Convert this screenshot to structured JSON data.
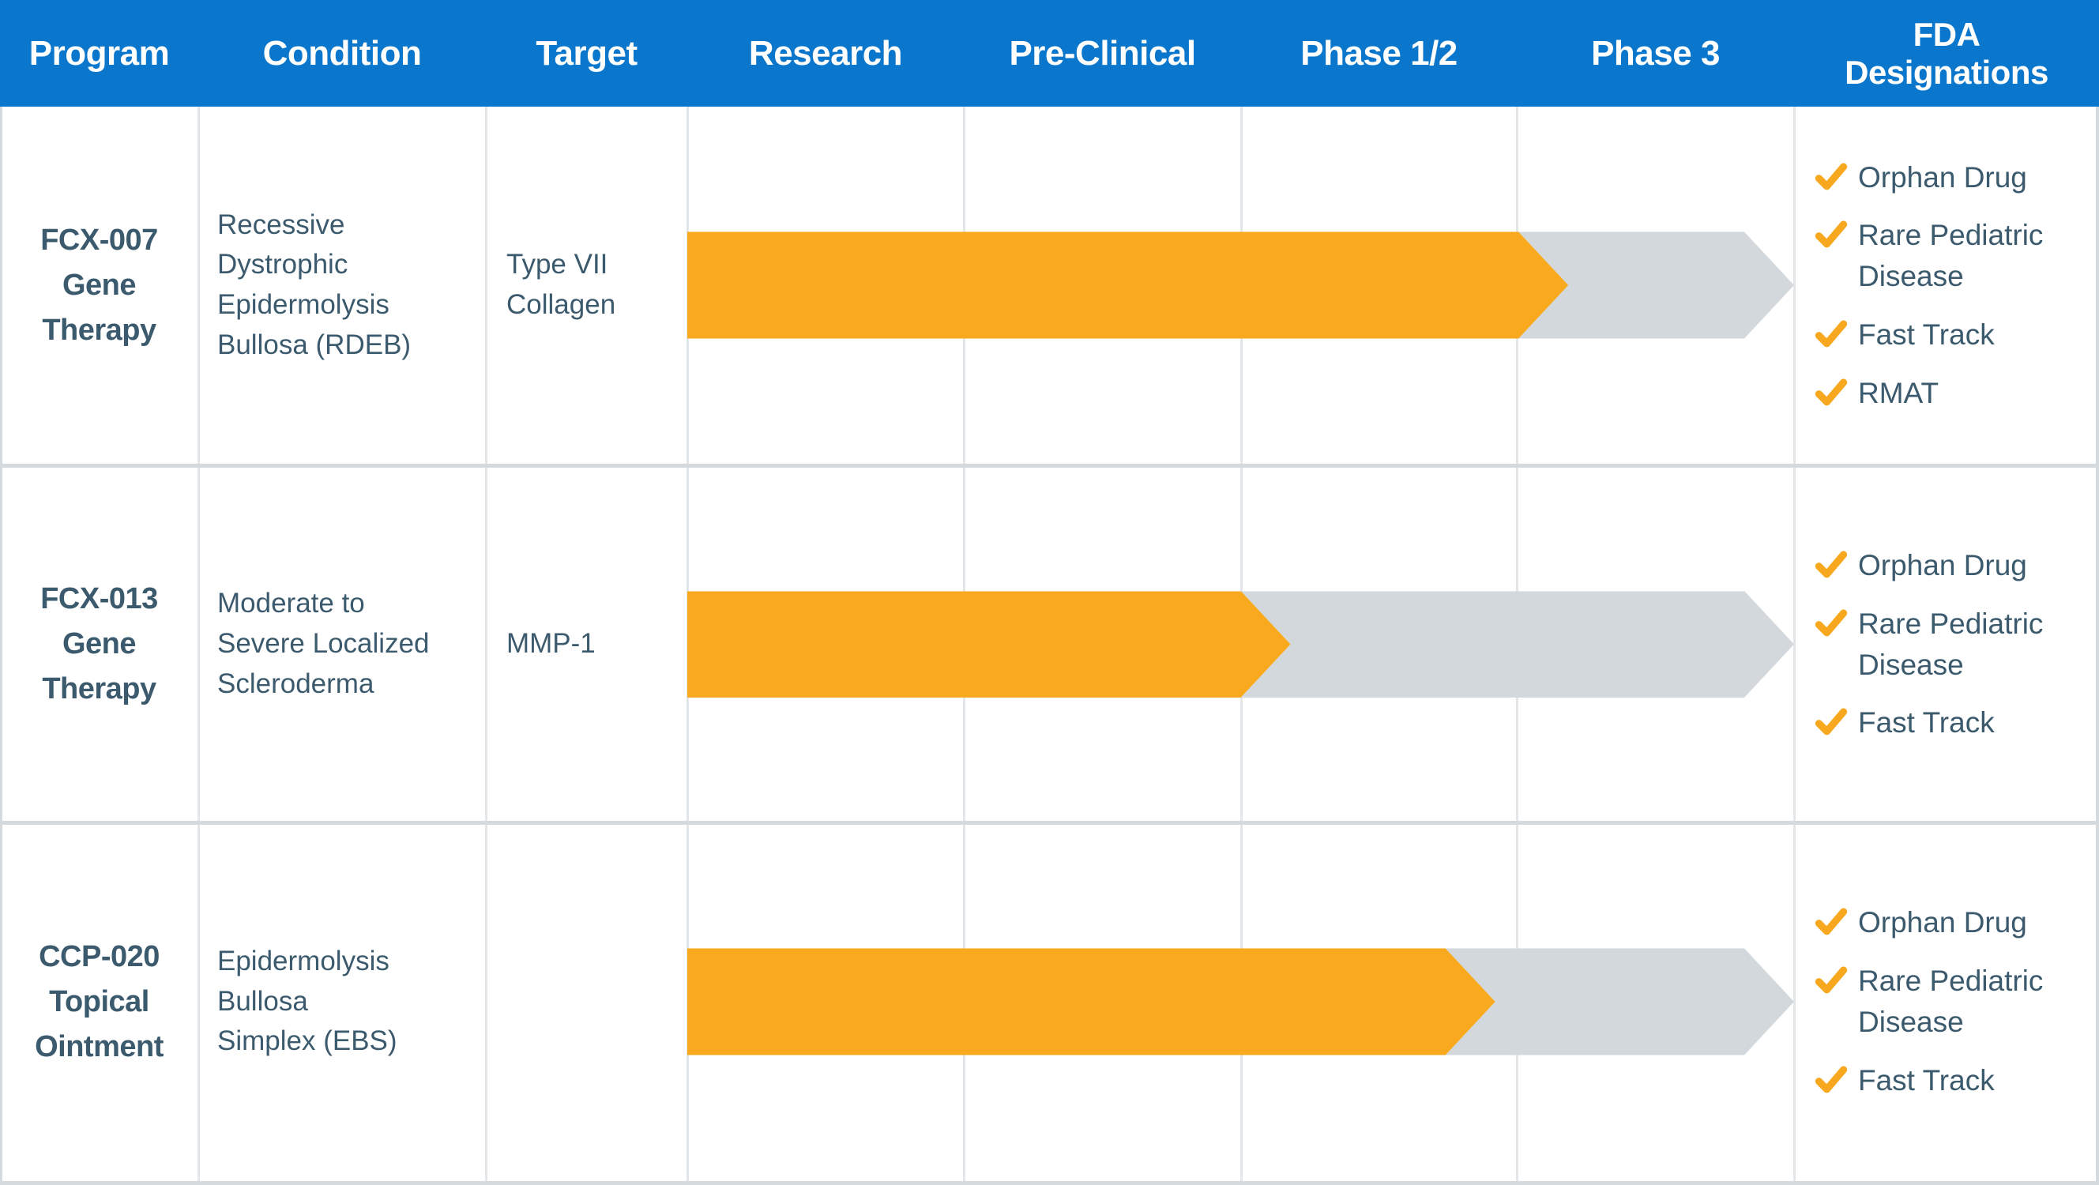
{
  "colors": {
    "header_bg": "#0B77CC",
    "bar_completed": "#F8A91E",
    "bar_remaining": "#D2D8DB",
    "text_dark": "#3C5A6D",
    "check": "#F7A81E",
    "grid_line": "#E2E6E9",
    "divider": "#D4DADD"
  },
  "columns": [
    "Program",
    "Condition",
    "Target",
    "Research",
    "Pre-Clinical",
    "Phase 1/2",
    "Phase 3",
    "FDA\nDesignations"
  ],
  "pipeline": {
    "rows": [
      {
        "program": "FCX-007\nGene\nTherapy",
        "condition": "Recessive\nDystrophic\nEpidermolysis\nBullosa (RDEB)",
        "target": "Type VII\nCollagen",
        "progress": 0.796,
        "designations": [
          "Orphan Drug",
          "Rare Pediatric\nDisease",
          "Fast Track",
          "RMAT"
        ]
      },
      {
        "program": "FCX-013\nGene\nTherapy",
        "condition": "Moderate to\nSevere Localized\nScleroderma",
        "target": "MMP-1",
        "progress": 0.545,
        "designations": [
          "Orphan Drug",
          "Rare Pediatric\nDisease",
          "Fast Track"
        ]
      },
      {
        "program": "CCP-020\nTopical\nOintment",
        "condition": "Epidermolysis\nBullosa\nSimplex (EBS)",
        "target": "",
        "progress": 0.73,
        "designations": [
          "Orphan Drug",
          "Rare Pediatric\nDisease",
          "Fast Track"
        ]
      }
    ]
  },
  "chart_data": {
    "type": "table",
    "columns": [
      "Program",
      "Condition",
      "Target",
      "Research",
      "Pre-Clinical",
      "Phase 1/2",
      "Phase 3",
      "FDA Designations"
    ],
    "stage_axis": {
      "stages": [
        "Research",
        "Pre-Clinical",
        "Phase 1/2",
        "Phase 3"
      ],
      "range": [
        0,
        4
      ]
    },
    "rows": [
      {
        "program": "FCX-007 Gene Therapy",
        "condition": "Recessive Dystrophic Epidermolysis Bullosa (RDEB)",
        "target": "Type VII Collagen",
        "stage_reached": "Phase 3",
        "track_fraction_completed": 0.796,
        "stages_completed": 3.18,
        "fda_designations": [
          "Orphan Drug",
          "Rare Pediatric Disease",
          "Fast Track",
          "RMAT"
        ]
      },
      {
        "program": "FCX-013 Gene Therapy",
        "condition": "Moderate to Severe Localized Scleroderma",
        "target": "MMP-1",
        "stage_reached": "Phase 1/2",
        "track_fraction_completed": 0.545,
        "stages_completed": 2.18,
        "fda_designations": [
          "Orphan Drug",
          "Rare Pediatric Disease",
          "Fast Track"
        ]
      },
      {
        "program": "CCP-020 Topical Ointment",
        "condition": "Epidermolysis Bullosa Simplex (EBS)",
        "target": "",
        "stage_reached": "Phase 1/2",
        "track_fraction_completed": 0.73,
        "stages_completed": 2.92,
        "fda_designations": [
          "Orphan Drug",
          "Rare Pediatric Disease",
          "Fast Track"
        ]
      }
    ]
  }
}
